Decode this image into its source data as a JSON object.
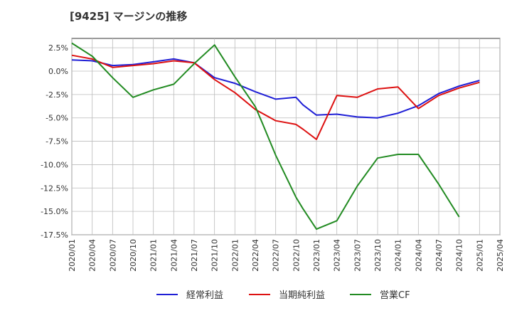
{
  "page_title": "[9425]  マージンの推移",
  "chart_data": {
    "type": "line",
    "ylim": [
      -17.5,
      3.5
    ],
    "yticks": [
      2.5,
      0,
      -2.5,
      -5,
      -7.5,
      -10,
      -12.5,
      -15,
      -17.5
    ],
    "ytick_labels": [
      "2.5%",
      "0.0%",
      "-2.5%",
      "-5.0%",
      "-7.5%",
      "-10.0%",
      "-12.5%",
      "-15.0%",
      "-17.5%"
    ],
    "xticks": [
      "2020/01",
      "2020/04",
      "2020/07",
      "2020/10",
      "2021/01",
      "2021/04",
      "2021/07",
      "2021/10",
      "2022/01",
      "2022/04",
      "2022/07",
      "2022/10",
      "2023/01",
      "2023/04",
      "2023/07",
      "2023/10",
      "2024/01",
      "2024/04",
      "2024/07",
      "2024/10",
      "2025/01",
      "2025/04"
    ],
    "grid": true,
    "legend_position": "bottom",
    "series": [
      {
        "name": "経常利益",
        "color": "#1f1fd6",
        "points": [
          [
            "2020/01",
            1.2
          ],
          [
            "2020/04",
            1.1
          ],
          [
            "2020/07",
            0.6
          ],
          [
            "2020/10",
            0.7
          ],
          [
            "2021/01",
            1.0
          ],
          [
            "2021/04",
            1.3
          ],
          [
            "2021/07",
            0.9
          ],
          [
            "2021/10",
            -0.7
          ],
          [
            "2022/01",
            -1.3
          ],
          [
            "2022/04",
            -2.2
          ],
          [
            "2022/07",
            -3.0
          ],
          [
            "2022/10",
            -2.8
          ],
          [
            "2022/11",
            -3.6
          ],
          [
            "2023/01",
            -4.7
          ],
          [
            "2023/04",
            -4.6
          ],
          [
            "2023/07",
            -4.9
          ],
          [
            "2023/10",
            -5.0
          ],
          [
            "2024/01",
            -4.5
          ],
          [
            "2024/04",
            -3.7
          ],
          [
            "2024/07",
            -2.4
          ],
          [
            "2024/10",
            -1.6
          ],
          [
            "2025/01",
            -1.0
          ]
        ]
      },
      {
        "name": "当期純利益",
        "color": "#dd1111",
        "points": [
          [
            "2020/01",
            1.7
          ],
          [
            "2020/04",
            1.3
          ],
          [
            "2020/07",
            0.4
          ],
          [
            "2020/10",
            0.6
          ],
          [
            "2021/01",
            0.8
          ],
          [
            "2021/04",
            1.1
          ],
          [
            "2021/07",
            0.9
          ],
          [
            "2021/10",
            -0.9
          ],
          [
            "2022/01",
            -2.3
          ],
          [
            "2022/04",
            -4.1
          ],
          [
            "2022/07",
            -5.3
          ],
          [
            "2022/10",
            -5.7
          ],
          [
            "2022/11",
            -6.2
          ],
          [
            "2023/01",
            -7.3
          ],
          [
            "2023/04",
            -2.6
          ],
          [
            "2023/07",
            -2.8
          ],
          [
            "2023/10",
            -1.9
          ],
          [
            "2024/01",
            -1.7
          ],
          [
            "2024/04",
            -4.0
          ],
          [
            "2024/07",
            -2.6
          ],
          [
            "2024/10",
            -1.8
          ],
          [
            "2025/01",
            -1.2
          ]
        ]
      },
      {
        "name": "営業CF",
        "color": "#228b22",
        "points": [
          [
            "2020/01",
            3.0
          ],
          [
            "2020/04",
            1.6
          ],
          [
            "2020/07",
            -0.7
          ],
          [
            "2020/10",
            -2.8
          ],
          [
            "2021/01",
            -2.0
          ],
          [
            "2021/04",
            -1.4
          ],
          [
            "2021/07",
            0.8
          ],
          [
            "2021/10",
            2.8
          ],
          [
            "2022/01",
            -0.6
          ],
          [
            "2022/04",
            -3.8
          ],
          [
            "2022/05",
            -5.5
          ],
          [
            "2022/07",
            -9.0
          ],
          [
            "2022/10",
            -13.5
          ],
          [
            "2022/11",
            -14.7
          ],
          [
            "2023/01",
            -16.9
          ],
          [
            "2023/04",
            -16.0
          ],
          [
            "2023/07",
            -12.3
          ],
          [
            "2023/10",
            -9.3
          ],
          [
            "2024/01",
            -8.9
          ],
          [
            "2024/04",
            -8.9
          ],
          [
            "2024/07",
            -12.1
          ],
          [
            "2024/10",
            -15.6
          ]
        ]
      }
    ]
  }
}
